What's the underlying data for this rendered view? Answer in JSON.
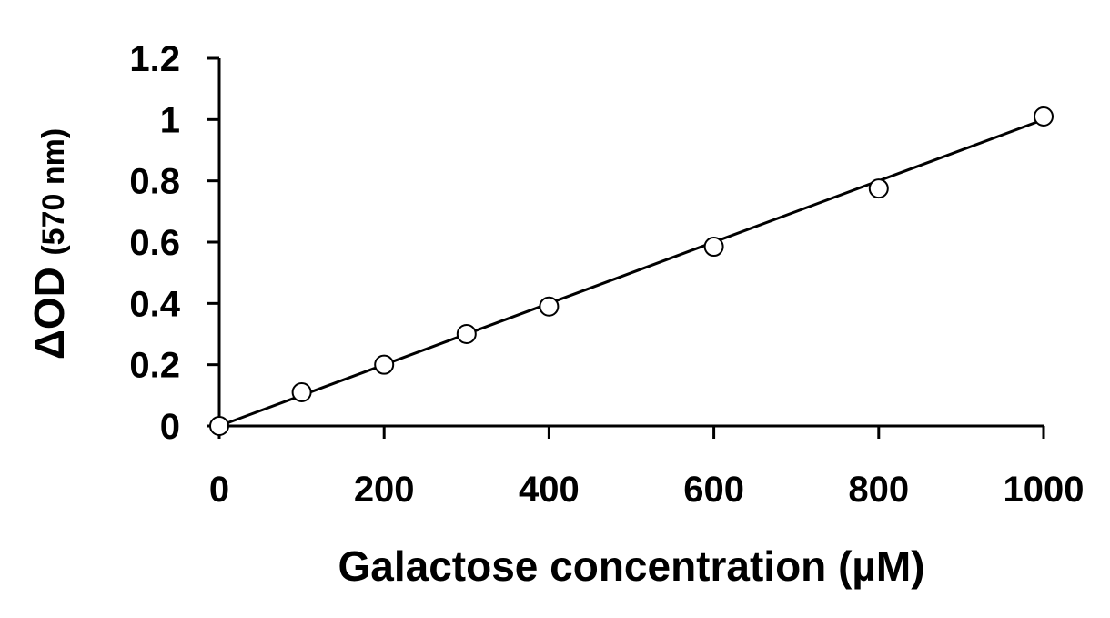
{
  "chart_data": {
    "type": "scatter",
    "title": "",
    "xlabel": "Galactose concentration (µM)",
    "ylabel_main": "ΔOD",
    "ylabel_sub": "(570 nm)",
    "xlim": [
      0,
      1000
    ],
    "ylim": [
      0,
      1.2
    ],
    "x_ticks": [
      "0",
      "200",
      "400",
      "600",
      "800",
      "1000"
    ],
    "y_ticks": [
      "0",
      "0.2",
      "0.4",
      "0.6",
      "0.8",
      "1",
      "1.2"
    ],
    "grid": false,
    "legend": "none",
    "series": [
      {
        "x": [
          0,
          100,
          200,
          300,
          400,
          600,
          800,
          1000
        ],
        "y": [
          0.0,
          0.11,
          0.2,
          0.3,
          0.39,
          0.585,
          0.775,
          1.01
        ]
      }
    ],
    "trendline": {
      "x": [
        0,
        1000
      ],
      "y": [
        0.0,
        1.0
      ]
    }
  }
}
